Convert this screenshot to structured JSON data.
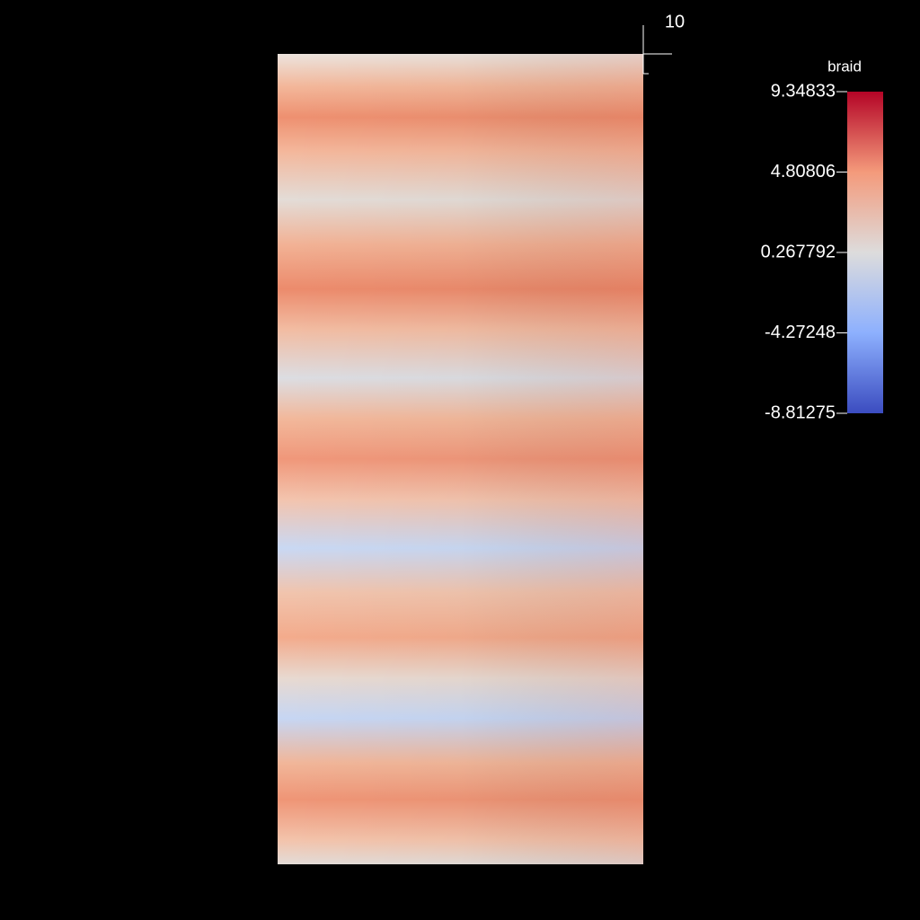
{
  "colorbar": {
    "title": "braid",
    "range": [
      -8.81275,
      9.34833
    ],
    "ticks": [
      9.34833,
      4.80806,
      0.267792,
      -4.27248,
      -8.81275
    ]
  },
  "axis": {
    "ticks": [
      10
    ]
  }
}
